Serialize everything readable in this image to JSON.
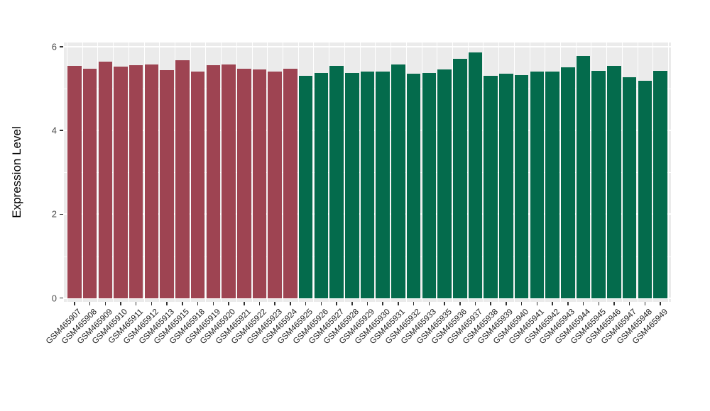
{
  "colors": {
    "canvas_bg": "#FFFFFF",
    "panel_bg": "#EBEBEB",
    "grid": "#FFFFFF",
    "group1_red": "#9E4452",
    "group2_green": "#046B4C",
    "axis_text": "#4D4D4D",
    "tick_mark": "#333333",
    "label_text": "#1A1A1A"
  },
  "chart_data": {
    "type": "bar",
    "title": "",
    "xlabel": "",
    "ylabel": "Expression Level",
    "ylim": [
      0,
      6.1
    ],
    "yticks_major": [
      0,
      2,
      4,
      6
    ],
    "yticks_minor": [
      1,
      3,
      5
    ],
    "grid": "ggplot gray panel, white major+minor gridlines",
    "legend_position": "none",
    "bar_width_fraction": 0.9,
    "bars": [
      {
        "label": "GSM465907",
        "value": 5.54,
        "color": "#9E4452"
      },
      {
        "label": "GSM465908",
        "value": 5.47,
        "color": "#9E4452"
      },
      {
        "label": "GSM465909",
        "value": 5.64,
        "color": "#9E4452"
      },
      {
        "label": "GSM465910",
        "value": 5.52,
        "color": "#9E4452"
      },
      {
        "label": "GSM465911",
        "value": 5.56,
        "color": "#9E4452"
      },
      {
        "label": "GSM465912",
        "value": 5.57,
        "color": "#9E4452"
      },
      {
        "label": "GSM465913",
        "value": 5.44,
        "color": "#9E4452"
      },
      {
        "label": "GSM465915",
        "value": 5.67,
        "color": "#9E4452"
      },
      {
        "label": "GSM465918",
        "value": 5.41,
        "color": "#9E4452"
      },
      {
        "label": "GSM465919",
        "value": 5.56,
        "color": "#9E4452"
      },
      {
        "label": "GSM465920",
        "value": 5.58,
        "color": "#9E4452"
      },
      {
        "label": "GSM465921",
        "value": 5.48,
        "color": "#9E4452"
      },
      {
        "label": "GSM465922",
        "value": 5.46,
        "color": "#9E4452"
      },
      {
        "label": "GSM465923",
        "value": 5.41,
        "color": "#9E4452"
      },
      {
        "label": "GSM465924",
        "value": 5.47,
        "color": "#9E4452"
      },
      {
        "label": "GSM465925",
        "value": 5.31,
        "color": "#046B4C"
      },
      {
        "label": "GSM465926",
        "value": 5.38,
        "color": "#046B4C"
      },
      {
        "label": "GSM465927",
        "value": 5.54,
        "color": "#046B4C"
      },
      {
        "label": "GSM465928",
        "value": 5.37,
        "color": "#046B4C"
      },
      {
        "label": "GSM465929",
        "value": 5.41,
        "color": "#046B4C"
      },
      {
        "label": "GSM465930",
        "value": 5.41,
        "color": "#046B4C"
      },
      {
        "label": "GSM465931",
        "value": 5.57,
        "color": "#046B4C"
      },
      {
        "label": "GSM465932",
        "value": 5.36,
        "color": "#046B4C"
      },
      {
        "label": "GSM465933",
        "value": 5.37,
        "color": "#046B4C"
      },
      {
        "label": "GSM465935",
        "value": 5.45,
        "color": "#046B4C"
      },
      {
        "label": "GSM465936",
        "value": 5.71,
        "color": "#046B4C"
      },
      {
        "label": "GSM465937",
        "value": 5.86,
        "color": "#046B4C"
      },
      {
        "label": "GSM465938",
        "value": 5.3,
        "color": "#046B4C"
      },
      {
        "label": "GSM465939",
        "value": 5.36,
        "color": "#046B4C"
      },
      {
        "label": "GSM465940",
        "value": 5.33,
        "color": "#046B4C"
      },
      {
        "label": "GSM465941",
        "value": 5.4,
        "color": "#046B4C"
      },
      {
        "label": "GSM465942",
        "value": 5.4,
        "color": "#046B4C"
      },
      {
        "label": "GSM465943",
        "value": 5.5,
        "color": "#046B4C"
      },
      {
        "label": "GSM465944",
        "value": 5.78,
        "color": "#046B4C"
      },
      {
        "label": "GSM465945",
        "value": 5.42,
        "color": "#046B4C"
      },
      {
        "label": "GSM465946",
        "value": 5.54,
        "color": "#046B4C"
      },
      {
        "label": "GSM465947",
        "value": 5.27,
        "color": "#046B4C"
      },
      {
        "label": "GSM465948",
        "value": 5.18,
        "color": "#046B4C"
      },
      {
        "label": "GSM465949",
        "value": 5.42,
        "color": "#046B4C"
      }
    ]
  }
}
